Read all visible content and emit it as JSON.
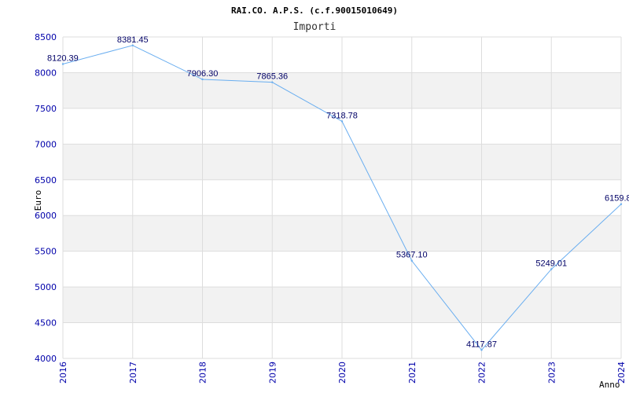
{
  "chart_data": {
    "type": "line",
    "title": "RAI.CO. A.P.S. (c.f.90015010649)",
    "subtitle": "Importi",
    "xlabel": "Anno",
    "ylabel": "Euro",
    "categories": [
      "2016",
      "2017",
      "2018",
      "2019",
      "2020",
      "2021",
      "2022",
      "2023",
      "2024"
    ],
    "values": [
      8120.39,
      8381.45,
      7906.3,
      7865.36,
      7318.78,
      5367.1,
      4117.87,
      5249.01,
      6159.8
    ],
    "data_labels": [
      "8120.39",
      "8381.45",
      "7906.30",
      "7865.36",
      "7318.78",
      "5367.10",
      "4117.87",
      "5249.01",
      "6159.8"
    ],
    "yticks": [
      "4000",
      "4500",
      "5000",
      "5500",
      "6000",
      "6500",
      "7000",
      "7500",
      "8000",
      "8500"
    ],
    "ylim": [
      4000,
      8500
    ],
    "grid": "horizontal alternating bands",
    "colors": {
      "line": "#6aaef0",
      "band": "#f2f2f2",
      "grid": "#dddddd",
      "tick_text": "#0000aa",
      "data_label": "#000066"
    }
  }
}
